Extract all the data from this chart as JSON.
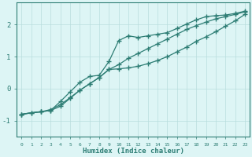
{
  "xlabel": "Humidex (Indice chaleur)",
  "bg_color": "#ddf5f5",
  "line_color": "#2d7d74",
  "grid_color": "#b8dede",
  "xlim": [
    -0.5,
    23.5
  ],
  "ylim": [
    -1.5,
    2.7
  ],
  "yticks": [
    -1,
    0,
    1,
    2
  ],
  "xticks": [
    0,
    1,
    2,
    3,
    4,
    5,
    6,
    7,
    8,
    9,
    10,
    11,
    12,
    13,
    14,
    15,
    16,
    17,
    18,
    19,
    20,
    21,
    22,
    23
  ],
  "line1_x": [
    0,
    1,
    2,
    3,
    4,
    5,
    6,
    7,
    8,
    9,
    10,
    11,
    12,
    13,
    14,
    15,
    16,
    17,
    18,
    19,
    20,
    21,
    22,
    23
  ],
  "line1_y": [
    -0.8,
    -0.75,
    -0.72,
    -0.68,
    -0.55,
    -0.3,
    -0.05,
    0.15,
    0.35,
    0.6,
    0.75,
    0.95,
    1.1,
    1.25,
    1.4,
    1.55,
    1.7,
    1.85,
    1.97,
    2.08,
    2.18,
    2.25,
    2.32,
    2.4
  ],
  "line2_x": [
    0,
    2,
    3,
    4,
    5,
    6,
    7,
    8,
    9,
    10,
    11,
    12,
    13,
    14,
    15,
    16,
    17,
    18,
    19,
    20,
    21,
    22,
    23
  ],
  "line2_y": [
    -0.8,
    -0.72,
    -0.68,
    -0.4,
    -0.1,
    0.2,
    0.38,
    0.42,
    0.85,
    1.5,
    1.65,
    1.6,
    1.65,
    1.7,
    1.75,
    1.88,
    2.02,
    2.15,
    2.25,
    2.28,
    2.3,
    2.35,
    2.42
  ],
  "line3_x": [
    0,
    1,
    2,
    3,
    4,
    5,
    6,
    7,
    8,
    9,
    10,
    11,
    12,
    13,
    14,
    15,
    16,
    17,
    18,
    19,
    20,
    21,
    22,
    23
  ],
  "line3_y": [
    -0.8,
    -0.75,
    -0.72,
    -0.65,
    -0.5,
    -0.28,
    -0.05,
    0.15,
    0.35,
    0.6,
    0.62,
    0.65,
    0.7,
    0.78,
    0.88,
    1.0,
    1.15,
    1.3,
    1.48,
    1.62,
    1.78,
    1.95,
    2.12,
    2.32
  ],
  "marker": "+",
  "markersize": 4,
  "linewidth": 0.9
}
